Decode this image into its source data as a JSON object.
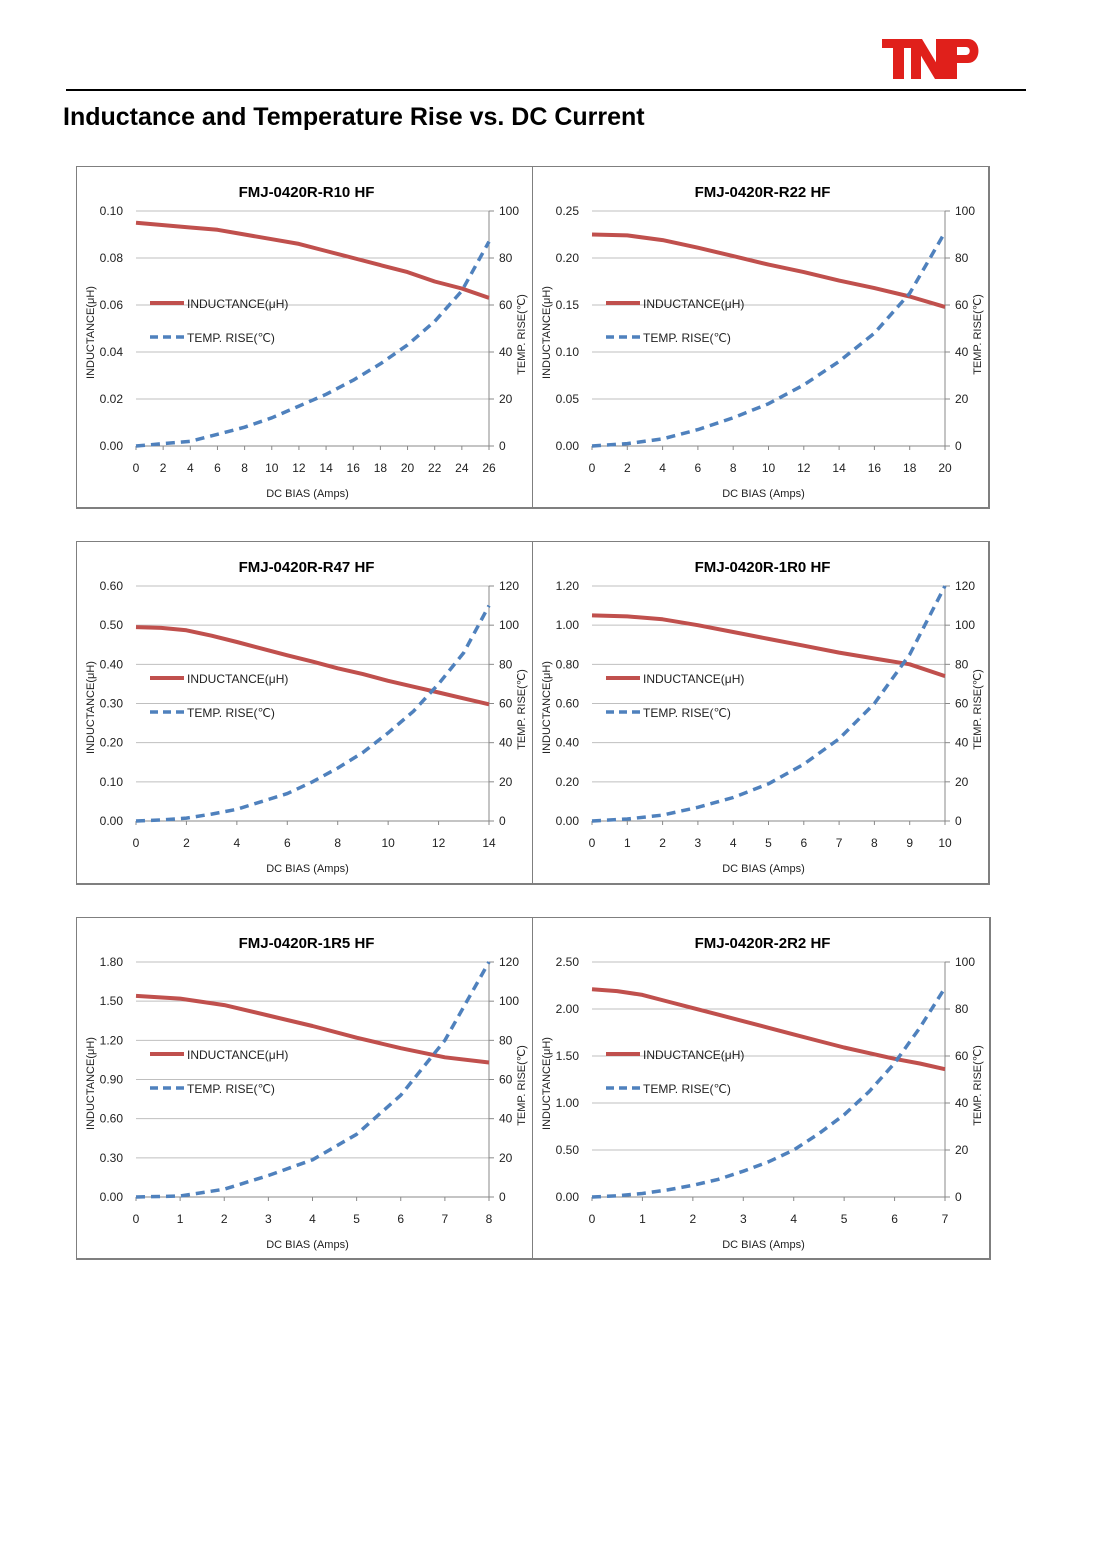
{
  "header": {
    "logo_text": "TNP",
    "title": "Inductance and Temperature Rise vs. DC Current"
  },
  "colors": {
    "inductance": "#c0504d",
    "temp_rise": "#4f81bd",
    "grid": "#bfbfbf",
    "logo": "#e0201b"
  },
  "chart_data": [
    {
      "type": "line",
      "title": "FMJ-0420R-R10 HF",
      "xlabel": "DC BIAS (Amps)",
      "ylabel": "INDUCTANCE(μH)",
      "y2label": "TEMP. RISE(℃)",
      "xlim": [
        0,
        26
      ],
      "xticks": [
        0,
        2,
        4,
        6,
        8,
        10,
        12,
        14,
        16,
        18,
        20,
        22,
        24,
        26
      ],
      "ylim": [
        0,
        0.1
      ],
      "yticks": [
        "0.00",
        "0.02",
        "0.04",
        "0.06",
        "0.08",
        "0.10"
      ],
      "y2lim": [
        0,
        100
      ],
      "y2ticks": [
        "0",
        "20",
        "40",
        "60",
        "80",
        "100"
      ],
      "grid": true,
      "legend": "left",
      "series": [
        {
          "name": "INDUCTANCE(μH)",
          "axis": "left",
          "style": "solid",
          "x": [
            0,
            2,
            4,
            6,
            8,
            10,
            12,
            14,
            16,
            18,
            20,
            22,
            24,
            26
          ],
          "y": [
            0.095,
            0.094,
            0.093,
            0.092,
            0.09,
            0.088,
            0.086,
            0.083,
            0.08,
            0.077,
            0.074,
            0.07,
            0.067,
            0.063
          ]
        },
        {
          "name": "TEMP. RISE(℃)",
          "axis": "right",
          "style": "dashed",
          "x": [
            0,
            2,
            4,
            6,
            8,
            10,
            12,
            14,
            16,
            18,
            20,
            22,
            24,
            26
          ],
          "y": [
            0,
            1,
            2,
            5,
            8,
            12,
            17,
            22,
            28,
            35,
            43,
            53,
            66,
            87
          ]
        }
      ]
    },
    {
      "type": "line",
      "title": "FMJ-0420R-R22 HF",
      "xlabel": "DC BIAS (Amps)",
      "ylabel": "INDUCTANCE(μH)",
      "y2label": "TEMP. RISE(℃)",
      "xlim": [
        0,
        20
      ],
      "xticks": [
        0,
        2,
        4,
        6,
        8,
        10,
        12,
        14,
        16,
        18,
        20
      ],
      "ylim": [
        0,
        0.25
      ],
      "yticks": [
        "0.00",
        "0.05",
        "0.10",
        "0.15",
        "0.20",
        "0.25"
      ],
      "y2lim": [
        0,
        100
      ],
      "y2ticks": [
        "0",
        "20",
        "40",
        "60",
        "80",
        "100"
      ],
      "grid": true,
      "legend": "left",
      "series": [
        {
          "name": "INDUCTANCE(μH)",
          "axis": "left",
          "style": "solid",
          "x": [
            0,
            2,
            4,
            6,
            8,
            10,
            12,
            14,
            16,
            18,
            20
          ],
          "y": [
            0.225,
            0.224,
            0.219,
            0.211,
            0.202,
            0.193,
            0.185,
            0.176,
            0.168,
            0.159,
            0.148
          ]
        },
        {
          "name": "TEMP. RISE(℃)",
          "axis": "right",
          "style": "dashed",
          "x": [
            0,
            2,
            4,
            6,
            8,
            10,
            12,
            14,
            16,
            18,
            20
          ],
          "y": [
            0,
            1,
            3,
            7,
            12,
            18,
            26,
            36,
            48,
            65,
            91
          ]
        }
      ]
    },
    {
      "type": "line",
      "title": "FMJ-0420R-R47 HF",
      "xlabel": "DC BIAS (Amps)",
      "ylabel": "INDUCTANCE(μH)",
      "y2label": "TEMP. RISE(℃)",
      "xlim": [
        0,
        14
      ],
      "xticks": [
        0,
        2,
        4,
        6,
        8,
        10,
        12,
        14
      ],
      "ylim": [
        0,
        0.6
      ],
      "yticks": [
        "0.00",
        "0.10",
        "0.20",
        "0.30",
        "0.40",
        "0.50",
        "0.60"
      ],
      "y2lim": [
        0,
        120
      ],
      "y2ticks": [
        "0",
        "20",
        "40",
        "60",
        "80",
        "100",
        "120"
      ],
      "grid": true,
      "legend": "left",
      "series": [
        {
          "name": "INDUCTANCE(μH)",
          "axis": "left",
          "style": "solid",
          "x": [
            0,
            1,
            2,
            3,
            4,
            5,
            6,
            7,
            8,
            9,
            10,
            11,
            12,
            13,
            14
          ],
          "y": [
            0.495,
            0.493,
            0.487,
            0.473,
            0.457,
            0.44,
            0.423,
            0.407,
            0.39,
            0.375,
            0.358,
            0.343,
            0.328,
            0.313,
            0.298
          ]
        },
        {
          "name": "TEMP. RISE(℃)",
          "axis": "right",
          "style": "dashed",
          "x": [
            0,
            1,
            2,
            3,
            4,
            5,
            6,
            7,
            8,
            9,
            10,
            11,
            12,
            13,
            14
          ],
          "y": [
            0,
            0.5,
            1.5,
            3.5,
            6,
            10,
            14,
            20,
            27,
            35,
            45,
            56,
            70,
            86,
            110
          ]
        }
      ]
    },
    {
      "type": "line",
      "title": "FMJ-0420R-1R0 HF",
      "xlabel": "DC BIAS (Amps)",
      "ylabel": "INDUCTANCE(μH)",
      "y2label": "TEMP. RISE(℃)",
      "xlim": [
        0,
        10
      ],
      "xticks": [
        0,
        1,
        2,
        3,
        4,
        5,
        6,
        7,
        8,
        9,
        10
      ],
      "ylim": [
        0,
        1.2
      ],
      "yticks": [
        "0.00",
        "0.20",
        "0.40",
        "0.60",
        "0.80",
        "1.00",
        "1.20"
      ],
      "y2lim": [
        0,
        120
      ],
      "y2ticks": [
        "0",
        "20",
        "40",
        "60",
        "80",
        "100",
        "120"
      ],
      "grid": true,
      "legend": "left",
      "series": [
        {
          "name": "INDUCTANCE(μH)",
          "axis": "left",
          "style": "solid",
          "x": [
            0,
            1,
            2,
            3,
            4,
            5,
            6,
            7,
            8,
            9,
            10
          ],
          "y": [
            1.05,
            1.045,
            1.03,
            1.0,
            0.965,
            0.93,
            0.895,
            0.86,
            0.83,
            0.8,
            0.74
          ]
        },
        {
          "name": "TEMP. RISE(℃)",
          "axis": "right",
          "style": "dashed",
          "x": [
            0,
            1,
            2,
            3,
            4,
            5,
            6,
            7,
            8,
            9,
            10
          ],
          "y": [
            0,
            1,
            3,
            7,
            12,
            19,
            29,
            42,
            60,
            85,
            120
          ]
        }
      ]
    },
    {
      "type": "line",
      "title": "FMJ-0420R-1R5 HF",
      "xlabel": "DC BIAS (Amps)",
      "ylabel": "INDUCTANCE(μH)",
      "y2label": "TEMP. RISE(℃)",
      "xlim": [
        0,
        8
      ],
      "xticks": [
        0,
        1,
        2,
        3,
        4,
        5,
        6,
        7,
        8
      ],
      "ylim": [
        0,
        1.8
      ],
      "yticks": [
        "0.00",
        "0.30",
        "0.60",
        "0.90",
        "1.20",
        "1.50",
        "1.80"
      ],
      "y2lim": [
        0,
        120
      ],
      "y2ticks": [
        "0",
        "20",
        "40",
        "60",
        "80",
        "100",
        "120"
      ],
      "grid": true,
      "legend": "left",
      "series": [
        {
          "name": "INDUCTANCE(μH)",
          "axis": "left",
          "style": "solid",
          "x": [
            0,
            1,
            2,
            3,
            4,
            5,
            6,
            7,
            8
          ],
          "y": [
            1.54,
            1.52,
            1.47,
            1.39,
            1.31,
            1.22,
            1.14,
            1.07,
            1.03
          ]
        },
        {
          "name": "TEMP. RISE(℃)",
          "axis": "right",
          "style": "dashed",
          "x": [
            0,
            1,
            2,
            3,
            4,
            5,
            6,
            7,
            8
          ],
          "y": [
            0,
            0.5,
            4,
            11,
            19,
            32,
            52,
            80,
            120
          ]
        }
      ]
    },
    {
      "type": "line",
      "title": "FMJ-0420R-2R2 HF",
      "xlabel": "DC BIAS (Amps)",
      "ylabel": "INDUCTANCE(μH)",
      "y2label": "TEMP. RISE(℃)",
      "xlim": [
        0,
        7
      ],
      "xticks": [
        0,
        1,
        2,
        3,
        4,
        5,
        6,
        7
      ],
      "ylim": [
        0,
        2.5
      ],
      "yticks": [
        "0.00",
        "0.50",
        "1.00",
        "1.50",
        "2.00",
        "2.50"
      ],
      "y2lim": [
        0,
        100
      ],
      "y2ticks": [
        "0",
        "20",
        "40",
        "60",
        "80",
        "100"
      ],
      "grid": true,
      "legend": "left",
      "series": [
        {
          "name": "INDUCTANCE(μH)",
          "axis": "left",
          "style": "solid",
          "x": [
            0,
            0.5,
            1,
            1.5,
            2,
            2.5,
            3,
            3.5,
            4,
            4.5,
            5,
            5.5,
            6,
            6.5,
            7
          ],
          "y": [
            2.21,
            2.19,
            2.15,
            2.08,
            2.01,
            1.94,
            1.87,
            1.8,
            1.73,
            1.66,
            1.59,
            1.53,
            1.47,
            1.42,
            1.36
          ]
        },
        {
          "name": "TEMP. RISE(℃)",
          "axis": "right",
          "style": "dashed",
          "x": [
            0,
            0.5,
            1,
            1.5,
            2,
            2.5,
            3,
            3.5,
            4,
            4.5,
            5,
            5.5,
            6,
            6.5,
            7
          ],
          "y": [
            0,
            0.5,
            1.5,
            3,
            5,
            7.5,
            11,
            15,
            20,
            27,
            35,
            45,
            57,
            72,
            89
          ]
        }
      ]
    }
  ]
}
